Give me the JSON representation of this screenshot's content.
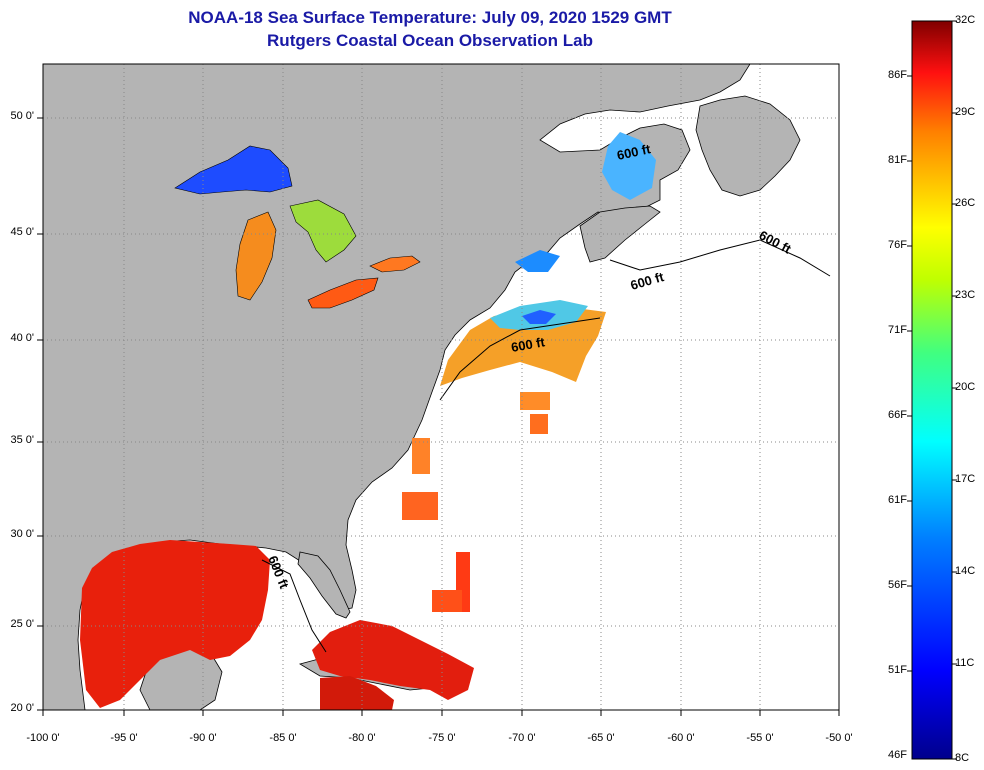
{
  "header": {
    "title": "NOAA-18 Sea Surface Temperature:  July 09, 2020 1529 GMT",
    "subtitle": "Rutgers Coastal Ocean Observation Lab"
  },
  "map": {
    "lat_labels": [
      "50 0'",
      "45 0'",
      "40 0'",
      "35 0'",
      "30 0'",
      "25 0'",
      "20 0'"
    ],
    "lon_labels": [
      "-100 0'",
      "-95 0'",
      "-90 0'",
      "-85 0'",
      "-80 0'",
      "-75 0'",
      "-70 0'",
      "-65 0'",
      "-60 0'",
      "-55 0'",
      "-50 0'"
    ],
    "contour_label": "600 ft",
    "colors": {
      "land": "#b4b4b4",
      "ocean_nodata": "#ffffff",
      "grid": "#888888",
      "title": "#1a1aa6"
    }
  },
  "colorbar": {
    "fahrenheit": [
      "86F",
      "81F",
      "76F",
      "71F",
      "66F",
      "61F",
      "56F",
      "51F",
      "46F"
    ],
    "celsius": [
      "32C",
      "29C",
      "26C",
      "23C",
      "20C",
      "17C",
      "14C",
      "11C",
      "8C"
    ]
  }
}
